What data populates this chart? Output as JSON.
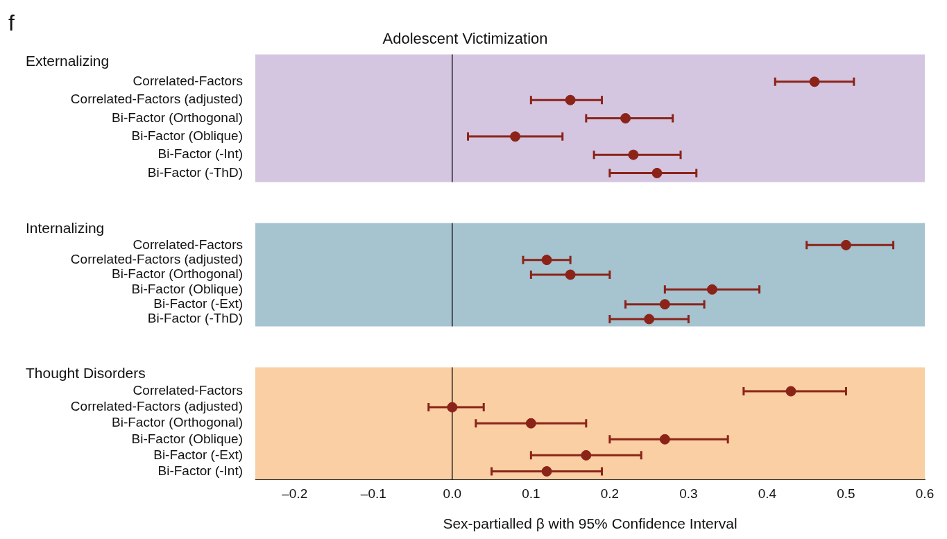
{
  "chart_data": [
    {
      "type": "scatter",
      "orientation": "horizontal",
      "title": "Adolescent Victimization",
      "subtitle": "Externalizing",
      "annotations": [
        "f"
      ],
      "tick_labels": "y",
      "categories": [
        "Correlated-Factors",
        "Correlated-Factors (adjusted)",
        "Bi-Factor (Orthogonal)",
        "Bi-Factor (Oblique)",
        "Bi-Factor (-Int)",
        "Bi-Factor (-ThD)"
      ],
      "values": [
        0.46,
        0.15,
        0.22,
        0.08,
        0.23,
        0.26
      ],
      "errors": [
        [
          0.41,
          0.51
        ],
        [
          0.1,
          0.19
        ],
        [
          0.17,
          0.28
        ],
        [
          0.02,
          0.14
        ],
        [
          0.18,
          0.29
        ],
        [
          0.2,
          0.31
        ]
      ],
      "color": "#8b2318",
      "marker": "circle",
      "xlim": [
        -0.25,
        0.6
      ],
      "ref_lines": [
        {
          "axis": "x",
          "value": 0,
          "color": "#222222"
        }
      ],
      "bands": [
        {
          "axis": "x",
          "from": -0.25,
          "to": 0.6,
          "color": "#d4c6e0"
        }
      ],
      "grid": false,
      "legend": false
    },
    {
      "type": "scatter",
      "orientation": "horizontal",
      "subtitle": "Internalizing",
      "tick_labels": "y",
      "categories": [
        "Correlated-Factors",
        "Correlated-Factors (adjusted)",
        "Bi-Factor (Orthogonal)",
        "Bi-Factor (Oblique)",
        "Bi-Factor (-Ext)",
        "Bi-Factor (-ThD)"
      ],
      "values": [
        0.5,
        0.12,
        0.15,
        0.33,
        0.27,
        0.25
      ],
      "errors": [
        [
          0.45,
          0.56
        ],
        [
          0.09,
          0.15
        ],
        [
          0.1,
          0.2
        ],
        [
          0.27,
          0.39
        ],
        [
          0.22,
          0.32
        ],
        [
          0.2,
          0.3
        ]
      ],
      "color": "#8b2318",
      "marker": "circle",
      "xlim": [
        -0.25,
        0.6
      ],
      "ref_lines": [
        {
          "axis": "x",
          "value": 0,
          "color": "#222222"
        }
      ],
      "bands": [
        {
          "axis": "x",
          "from": -0.25,
          "to": 0.6,
          "color": "#a6c3d0"
        }
      ],
      "grid": false,
      "legend": false
    },
    {
      "type": "scatter",
      "orientation": "horizontal",
      "subtitle": "Thought Disorders",
      "xlabel": "Sex-partialled β with 95% Confidence Interval",
      "categories": [
        "Correlated-Factors",
        "Correlated-Factors (adjusted)",
        "Bi-Factor (Orthogonal)",
        "Bi-Factor (Oblique)",
        "Bi-Factor (-Ext)",
        "Bi-Factor (-Int)"
      ],
      "values": [
        0.43,
        0.0,
        0.1,
        0.27,
        0.17,
        0.12
      ],
      "errors": [
        [
          0.37,
          0.5
        ],
        [
          -0.03,
          0.04
        ],
        [
          0.03,
          0.17
        ],
        [
          0.2,
          0.35
        ],
        [
          0.1,
          0.24
        ],
        [
          0.05,
          0.19
        ]
      ],
      "color": "#8b2318",
      "marker": "circle",
      "xlim": [
        -0.25,
        0.6
      ],
      "xticks": [
        {
          "value": -0.2,
          "label": "–0.2"
        },
        {
          "value": -0.1,
          "label": "–0.1"
        },
        {
          "value": 0,
          "label": "0.0"
        },
        0.1,
        0.2,
        0.3,
        0.4,
        0.5,
        0.6
      ],
      "ref_lines": [
        {
          "axis": "x",
          "value": 0,
          "color": "#222222"
        }
      ],
      "bands": [
        {
          "axis": "x",
          "from": -0.25,
          "to": 0.6,
          "color": "#f9cfa3"
        }
      ],
      "grid": false,
      "legend": false
    }
  ]
}
